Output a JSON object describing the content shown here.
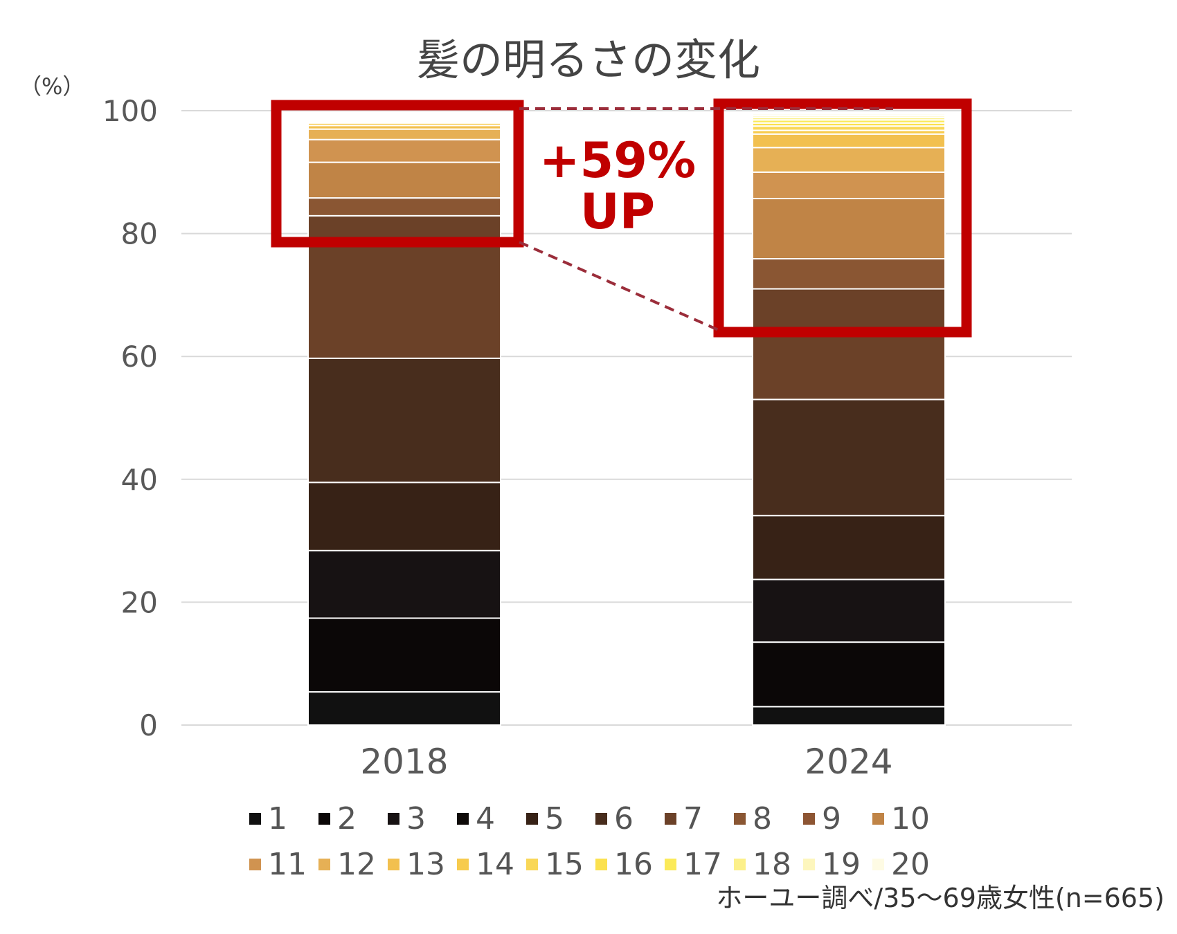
{
  "chart_data": {
    "type": "bar",
    "stacked": true,
    "title": "髪の明るさの変化",
    "unit_label": "（%）",
    "categories": [
      "2018",
      "2024"
    ],
    "yticks": [
      "0",
      "20",
      "40",
      "60",
      "80",
      "100"
    ],
    "ylim": [
      0,
      100
    ],
    "grid": true,
    "legend_position": "bottom",
    "series": [
      {
        "name": "1",
        "color": "#111111",
        "values": [
          5.4,
          3.0
        ]
      },
      {
        "name": "2",
        "color": "#0b0707",
        "values": [
          12.0,
          10.5
        ]
      },
      {
        "name": "3",
        "color": "#171213",
        "values": [
          11.0,
          10.2
        ]
      },
      {
        "name": "4",
        "color": "#0e0a08",
        "values": [
          0.0,
          0.0
        ]
      },
      {
        "name": "5",
        "color": "#372216",
        "values": [
          11.1,
          10.4
        ]
      },
      {
        "name": "6",
        "color": "#482d1d",
        "values": [
          20.2,
          18.9
        ]
      },
      {
        "name": "7",
        "color": "#6b4128",
        "values": [
          23.2,
          18.0
        ]
      },
      {
        "name": "8",
        "color": "#8a5633",
        "values": [
          2.9,
          4.9
        ]
      },
      {
        "name": "9",
        "color": "#8d5533",
        "values": [
          0.0,
          0.0
        ]
      },
      {
        "name": "10",
        "color": "#c08446",
        "values": [
          5.8,
          9.8
        ]
      },
      {
        "name": "11",
        "color": "#d09350",
        "values": [
          3.7,
          4.3
        ]
      },
      {
        "name": "12",
        "color": "#e6b055",
        "values": [
          1.7,
          4.0
        ]
      },
      {
        "name": "13",
        "color": "#f2c04f",
        "values": [
          0.6,
          2.2
        ]
      },
      {
        "name": "14",
        "color": "#f7cb4d",
        "values": [
          0.4,
          0.6
        ]
      },
      {
        "name": "15",
        "color": "#f9d757",
        "values": [
          0.2,
          0.7
        ]
      },
      {
        "name": "16",
        "color": "#fbe14f",
        "values": [
          0.0,
          0.5
        ]
      },
      {
        "name": "17",
        "color": "#fbea59",
        "values": [
          0.0,
          0.5
        ]
      },
      {
        "name": "18",
        "color": "#fcf08a",
        "values": [
          0.0,
          0.4
        ]
      },
      {
        "name": "19",
        "color": "#fdf6bd",
        "values": [
          0.0,
          0.3
        ]
      },
      {
        "name": "20",
        "color": "#fefbe4",
        "values": [
          0.0,
          0.3
        ]
      }
    ],
    "annotation": {
      "line1": "+59%",
      "line2": "UP",
      "color": "#c00000",
      "connector_color": "#9b2d3a"
    }
  },
  "source_note": "ホーユー調べ/35〜69歳女性(n=665)"
}
